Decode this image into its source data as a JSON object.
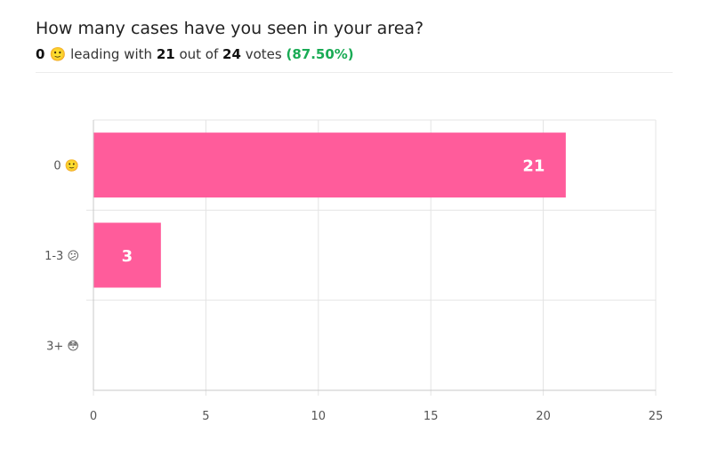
{
  "poll": {
    "question": "How many cases have you seen in your area?",
    "leader_label": "0 🙂",
    "leading_text": "leading with",
    "leader_votes": "21",
    "out_of_text": "out of",
    "total_votes": "24",
    "votes_text": "votes",
    "percent": "(87.50%)"
  },
  "colors": {
    "bar": "#ff5c9b",
    "grid": "#e4e4e4",
    "axis": "#c8c8c8",
    "percent": "#1aab55"
  },
  "chart_data": {
    "type": "bar",
    "orientation": "horizontal",
    "categories": [
      "0 🙂",
      "1-3 😕",
      "3+ 😳"
    ],
    "values": [
      21,
      3,
      0
    ],
    "xlim": [
      0,
      25
    ],
    "xticks": [
      "0",
      "5",
      "10",
      "15",
      "20",
      "25"
    ],
    "data_labels": [
      "21",
      "3",
      ""
    ],
    "grid": true,
    "title": "",
    "xlabel": "",
    "ylabel": ""
  }
}
